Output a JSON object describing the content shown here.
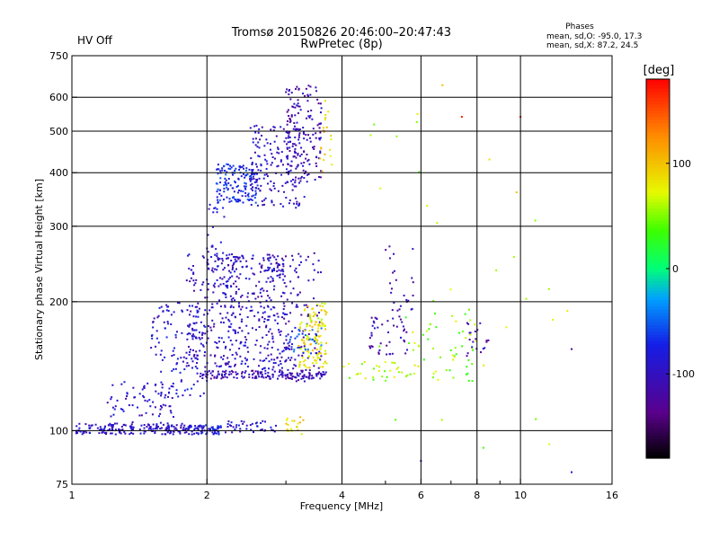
{
  "chart_data": {
    "type": "scatter",
    "title": "Tromsø 20150826 20:46:00–20:47:43",
    "subtitle": "RwPretec (8p)",
    "status_text": "HV Off",
    "status_color": "#cc0000",
    "stats": {
      "heading": "Phases",
      "line1": "mean, sd,O: -95.0, 17.3",
      "line2": "mean, sd,X:  87.2, 24.5"
    },
    "xlabel": "Frequency [MHz]",
    "ylabel": "Stationary phase Virtual Height [km]",
    "x_scale": "log",
    "y_scale": "log",
    "xlim": [
      1,
      16
    ],
    "ylim": [
      75,
      750
    ],
    "xticks": [
      1,
      2,
      4,
      6,
      8,
      10,
      16
    ],
    "xtick_labels": [
      "1",
      "2",
      "4",
      "6",
      "8",
      "10",
      "16"
    ],
    "x_minor_ticks": [
      3,
      5,
      7,
      9
    ],
    "yticks": [
      75,
      100,
      200,
      300,
      400,
      500,
      600,
      750
    ],
    "ytick_labels": [
      "75",
      "100",
      "200",
      "300",
      "400",
      "500",
      "600",
      "750"
    ],
    "grid": true,
    "colorbar": {
      "label": "[deg]",
      "range": [
        -180,
        180
      ],
      "ticks": [
        100,
        0,
        -100
      ],
      "tick_labels": [
        "100",
        "0",
        "-100"
      ]
    },
    "clusters": [
      {
        "f": [
          1.02,
          1.85
        ],
        "h": [
          98,
          104
        ],
        "phase": -95,
        "n": 180
      },
      {
        "f": [
          1.85,
          2.15
        ],
        "h": [
          98,
          103
        ],
        "phase": -85,
        "n": 60
      },
      {
        "f": [
          2.2,
          2.9
        ],
        "h": [
          99,
          106
        ],
        "phase": -90,
        "n": 40
      },
      {
        "f": [
          3.0,
          3.3
        ],
        "h": [
          98,
          108
        ],
        "phase": 90,
        "n": 18
      },
      {
        "f": [
          1.2,
          1.7
        ],
        "h": [
          103,
          130
        ],
        "phase": -95,
        "n": 70
      },
      {
        "f": [
          1.5,
          2.0
        ],
        "h": [
          120,
          200
        ],
        "phase": -90,
        "n": 120
      },
      {
        "f": [
          1.8,
          2.4
        ],
        "h": [
          140,
          260
        ],
        "phase": -100,
        "n": 220
      },
      {
        "f": [
          2.2,
          3.0
        ],
        "h": [
          135,
          260
        ],
        "phase": -95,
        "n": 200
      },
      {
        "f": [
          2.6,
          3.6
        ],
        "h": [
          130,
          260
        ],
        "phase": -105,
        "n": 180
      },
      {
        "f": [
          1.9,
          3.7
        ],
        "h": [
          132,
          138
        ],
        "phase": -110,
        "n": 150
      },
      {
        "f": [
          3.2,
          3.7
        ],
        "h": [
          140,
          180
        ],
        "phase": 85,
        "n": 90
      },
      {
        "f": [
          3.3,
          3.7
        ],
        "h": [
          175,
          200
        ],
        "phase": 80,
        "n": 40
      },
      {
        "f": [
          3.0,
          3.6
        ],
        "h": [
          150,
          175
        ],
        "phase": -60,
        "n": 30
      },
      {
        "f": [
          2.1,
          2.6
        ],
        "h": [
          340,
          420
        ],
        "phase": -70,
        "n": 150
      },
      {
        "f": [
          2.5,
          3.3
        ],
        "h": [
          330,
          520
        ],
        "phase": -100,
        "n": 170
      },
      {
        "f": [
          3.0,
          3.6
        ],
        "h": [
          380,
          640
        ],
        "phase": -110,
        "n": 150
      },
      {
        "f": [
          3.5,
          3.8
        ],
        "h": [
          400,
          600
        ],
        "phase": 95,
        "n": 20
      },
      {
        "f": [
          2.0,
          2.2
        ],
        "h": [
          220,
          340
        ],
        "phase": -95,
        "n": 30
      },
      {
        "f": [
          4.0,
          6.0
        ],
        "h": [
          130,
          145
        ],
        "phase": 60,
        "n": 35
      },
      {
        "f": [
          4.6,
          5.6
        ],
        "h": [
          150,
          185
        ],
        "phase": -110,
        "n": 45
      },
      {
        "f": [
          5.0,
          5.8
        ],
        "h": [
          190,
          270
        ],
        "phase": -115,
        "n": 25
      },
      {
        "f": [
          5.5,
          8.0
        ],
        "h": [
          130,
          190
        ],
        "phase": 50,
        "n": 50
      },
      {
        "f": [
          7.5,
          8.5
        ],
        "h": [
          145,
          180
        ],
        "phase": -110,
        "n": 20
      },
      {
        "f": [
          4.5,
          13.0
        ],
        "h": [
          90,
          600
        ],
        "phase": 60,
        "n": 30
      }
    ],
    "isolated_points": [
      {
        "f": 13.0,
        "h": 80,
        "phase": -90
      },
      {
        "f": 6.0,
        "h": 85,
        "phase": -90
      },
      {
        "f": 13.0,
        "h": 155,
        "phase": -120
      },
      {
        "f": 9.8,
        "h": 360,
        "phase": 100
      },
      {
        "f": 7.4,
        "h": 540,
        "phase": 170
      },
      {
        "f": 10.0,
        "h": 540,
        "phase": 170
      },
      {
        "f": 6.7,
        "h": 640,
        "phase": 100
      }
    ]
  }
}
